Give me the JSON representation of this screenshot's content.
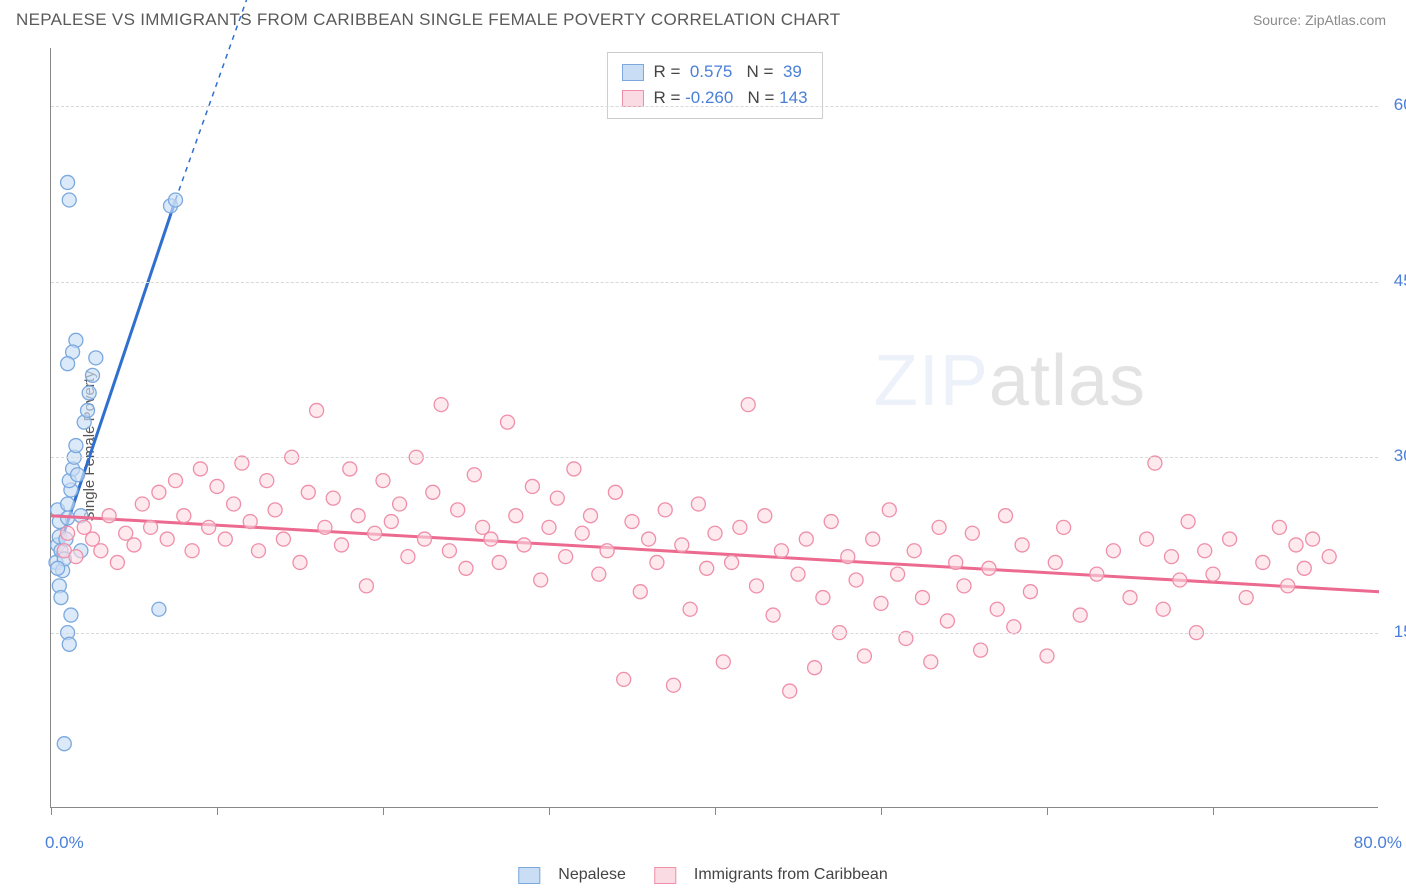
{
  "title": "NEPALESE VS IMMIGRANTS FROM CARIBBEAN SINGLE FEMALE POVERTY CORRELATION CHART",
  "source": "Source: ZipAtlas.com",
  "ylabel": "Single Female Poverty",
  "watermark_a": "ZIP",
  "watermark_b": "atlas",
  "chart": {
    "type": "scatter",
    "xlim": [
      0,
      80
    ],
    "ylim": [
      0,
      65
    ],
    "x_origin_label": "0.0%",
    "x_max_label": "80.0%",
    "y_ticks": [
      15.0,
      30.0,
      45.0,
      60.0
    ],
    "y_tick_labels": [
      "15.0%",
      "30.0%",
      "45.0%",
      "60.0%"
    ],
    "x_tick_positions": [
      0,
      10,
      20,
      30,
      40,
      50,
      60,
      70
    ],
    "background_color": "#ffffff",
    "grid_color": "#d8d8d8",
    "axis_color": "#888888",
    "axis_value_color": "#4a7fd8",
    "series": [
      {
        "name": "Nepalese",
        "label": "Nepalese",
        "R": "0.575",
        "N": "39",
        "color_fill": "#c9ddf4",
        "color_stroke": "#7ba9de",
        "line_color": "#2e6fd0",
        "marker_radius": 7,
        "marker_opacity": 0.65,
        "trend": {
          "x1": 0.3,
          "y1": 21.5,
          "x2": 7.5,
          "y2": 52.0,
          "dash_x2": 12.0,
          "dash_y2": 70.0
        },
        "points": [
          [
            0.3,
            21.0
          ],
          [
            0.4,
            22.5
          ],
          [
            0.5,
            23.2
          ],
          [
            0.5,
            24.5
          ],
          [
            0.4,
            25.5
          ],
          [
            0.6,
            22.0
          ],
          [
            0.7,
            20.3
          ],
          [
            0.8,
            21.3
          ],
          [
            0.9,
            23.0
          ],
          [
            1.0,
            24.8
          ],
          [
            1.0,
            26.0
          ],
          [
            1.2,
            27.2
          ],
          [
            1.1,
            28.0
          ],
          [
            1.3,
            29.0
          ],
          [
            1.4,
            30.0
          ],
          [
            1.5,
            31.0
          ],
          [
            1.6,
            28.5
          ],
          [
            1.8,
            25.0
          ],
          [
            2.0,
            33.0
          ],
          [
            2.2,
            34.0
          ],
          [
            2.3,
            35.5
          ],
          [
            2.5,
            37.0
          ],
          [
            2.7,
            38.5
          ],
          [
            1.0,
            15.0
          ],
          [
            1.1,
            14.0
          ],
          [
            1.2,
            16.5
          ],
          [
            0.8,
            5.5
          ],
          [
            1.5,
            40.0
          ],
          [
            1.3,
            39.0
          ],
          [
            1.0,
            38.0
          ],
          [
            1.1,
            52.0
          ],
          [
            1.0,
            53.5
          ],
          [
            7.2,
            51.5
          ],
          [
            7.5,
            52.0
          ],
          [
            0.5,
            19.0
          ],
          [
            0.6,
            18.0
          ],
          [
            0.4,
            20.5
          ],
          [
            6.5,
            17.0
          ],
          [
            1.8,
            22.0
          ]
        ]
      },
      {
        "name": "Immigrants from Caribbean",
        "label": "Immigrants from Caribbean",
        "R": "-0.260",
        "N": "143",
        "color_fill": "#fbdbe3",
        "color_stroke": "#ef8fa8",
        "line_color": "#ec6a8f",
        "marker_radius": 7,
        "marker_opacity": 0.6,
        "trend": {
          "x1": 0.0,
          "y1": 25.0,
          "x2": 80.0,
          "y2": 18.5
        },
        "points": [
          [
            0.8,
            22.0
          ],
          [
            1.0,
            23.5
          ],
          [
            1.5,
            21.5
          ],
          [
            2.0,
            24.0
          ],
          [
            2.5,
            23.0
          ],
          [
            3.0,
            22.0
          ],
          [
            3.5,
            25.0
          ],
          [
            4.0,
            21.0
          ],
          [
            4.5,
            23.5
          ],
          [
            5.0,
            22.5
          ],
          [
            5.5,
            26.0
          ],
          [
            6.0,
            24.0
          ],
          [
            6.5,
            27.0
          ],
          [
            7.0,
            23.0
          ],
          [
            7.5,
            28.0
          ],
          [
            8.0,
            25.0
          ],
          [
            8.5,
            22.0
          ],
          [
            9.0,
            29.0
          ],
          [
            9.5,
            24.0
          ],
          [
            10.0,
            27.5
          ],
          [
            10.5,
            23.0
          ],
          [
            11.0,
            26.0
          ],
          [
            11.5,
            29.5
          ],
          [
            12.0,
            24.5
          ],
          [
            12.5,
            22.0
          ],
          [
            13.0,
            28.0
          ],
          [
            13.5,
            25.5
          ],
          [
            14.0,
            23.0
          ],
          [
            14.5,
            30.0
          ],
          [
            15.0,
            21.0
          ],
          [
            15.5,
            27.0
          ],
          [
            16.0,
            34.0
          ],
          [
            16.5,
            24.0
          ],
          [
            17.0,
            26.5
          ],
          [
            17.5,
            22.5
          ],
          [
            18.0,
            29.0
          ],
          [
            18.5,
            25.0
          ],
          [
            19.0,
            19.0
          ],
          [
            19.5,
            23.5
          ],
          [
            20.0,
            28.0
          ],
          [
            20.5,
            24.5
          ],
          [
            21.0,
            26.0
          ],
          [
            21.5,
            21.5
          ],
          [
            22.0,
            30.0
          ],
          [
            22.5,
            23.0
          ],
          [
            23.0,
            27.0
          ],
          [
            23.5,
            34.5
          ],
          [
            24.0,
            22.0
          ],
          [
            24.5,
            25.5
          ],
          [
            25.0,
            20.5
          ],
          [
            25.5,
            28.5
          ],
          [
            26.0,
            24.0
          ],
          [
            26.5,
            23.0
          ],
          [
            27.0,
            21.0
          ],
          [
            27.5,
            33.0
          ],
          [
            28.0,
            25.0
          ],
          [
            28.5,
            22.5
          ],
          [
            29.0,
            27.5
          ],
          [
            29.5,
            19.5
          ],
          [
            30.0,
            24.0
          ],
          [
            30.5,
            26.5
          ],
          [
            31.0,
            21.5
          ],
          [
            31.5,
            29.0
          ],
          [
            32.0,
            23.5
          ],
          [
            32.5,
            25.0
          ],
          [
            33.0,
            20.0
          ],
          [
            33.5,
            22.0
          ],
          [
            34.0,
            27.0
          ],
          [
            34.5,
            11.0
          ],
          [
            35.0,
            24.5
          ],
          [
            35.5,
            18.5
          ],
          [
            36.0,
            23.0
          ],
          [
            36.5,
            21.0
          ],
          [
            37.0,
            25.5
          ],
          [
            37.5,
            10.5
          ],
          [
            38.0,
            22.5
          ],
          [
            38.5,
            17.0
          ],
          [
            39.0,
            26.0
          ],
          [
            39.5,
            20.5
          ],
          [
            40.0,
            23.5
          ],
          [
            40.5,
            12.5
          ],
          [
            41.0,
            21.0
          ],
          [
            41.5,
            24.0
          ],
          [
            42.0,
            34.5
          ],
          [
            42.5,
            19.0
          ],
          [
            43.0,
            25.0
          ],
          [
            43.5,
            16.5
          ],
          [
            44.0,
            22.0
          ],
          [
            44.5,
            10.0
          ],
          [
            45.0,
            20.0
          ],
          [
            45.5,
            23.0
          ],
          [
            46.0,
            12.0
          ],
          [
            46.5,
            18.0
          ],
          [
            47.0,
            24.5
          ],
          [
            47.5,
            15.0
          ],
          [
            48.0,
            21.5
          ],
          [
            48.5,
            19.5
          ],
          [
            49.0,
            13.0
          ],
          [
            49.5,
            23.0
          ],
          [
            50.0,
            17.5
          ],
          [
            50.5,
            25.5
          ],
          [
            51.0,
            20.0
          ],
          [
            51.5,
            14.5
          ],
          [
            52.0,
            22.0
          ],
          [
            52.5,
            18.0
          ],
          [
            53.0,
            12.5
          ],
          [
            53.5,
            24.0
          ],
          [
            54.0,
            16.0
          ],
          [
            54.5,
            21.0
          ],
          [
            55.0,
            19.0
          ],
          [
            55.5,
            23.5
          ],
          [
            56.0,
            13.5
          ],
          [
            56.5,
            20.5
          ],
          [
            57.0,
            17.0
          ],
          [
            57.5,
            25.0
          ],
          [
            58.0,
            15.5
          ],
          [
            58.5,
            22.5
          ],
          [
            59.0,
            18.5
          ],
          [
            60.0,
            13.0
          ],
          [
            60.5,
            21.0
          ],
          [
            61.0,
            24.0
          ],
          [
            62.0,
            16.5
          ],
          [
            63.0,
            20.0
          ],
          [
            64.0,
            22.0
          ],
          [
            65.0,
            18.0
          ],
          [
            66.0,
            23.0
          ],
          [
            66.5,
            29.5
          ],
          [
            67.0,
            17.0
          ],
          [
            67.5,
            21.5
          ],
          [
            68.0,
            19.5
          ],
          [
            68.5,
            24.5
          ],
          [
            69.0,
            15.0
          ],
          [
            69.5,
            22.0
          ],
          [
            70.0,
            20.0
          ],
          [
            71.0,
            23.0
          ],
          [
            72.0,
            18.0
          ],
          [
            73.0,
            21.0
          ],
          [
            74.0,
            24.0
          ],
          [
            74.5,
            19.0
          ],
          [
            75.0,
            22.5
          ],
          [
            75.5,
            20.5
          ],
          [
            76.0,
            23.0
          ],
          [
            77.0,
            21.5
          ]
        ]
      }
    ]
  },
  "legend_words": {
    "R": "R = ",
    "N": "   N = "
  }
}
